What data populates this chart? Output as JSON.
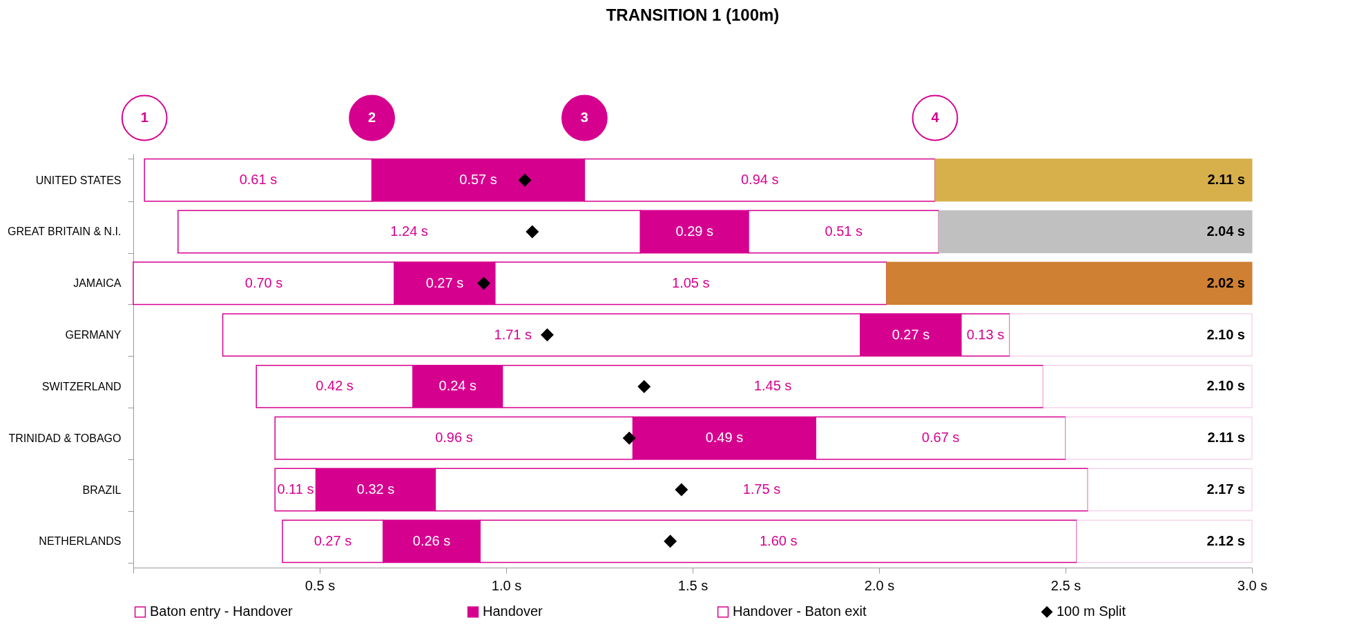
{
  "chart_data": {
    "type": "bar",
    "orientation": "horizontal",
    "title": "TRANSITION 1 (100m)",
    "categories": [
      "UNITED STATES",
      "GREAT BRITAIN & N.I.",
      "JAMAICA",
      "GERMANY",
      "SWITZERLAND",
      "TRINIDAD & TOBAGO",
      "BRAZIL",
      "NETHERLANDS"
    ],
    "series": [
      {
        "name": "Baton entry - Handover",
        "color": "#ffffff",
        "base": [
          0.03,
          0.12,
          0.0,
          0.24,
          0.33,
          0.38,
          0.38,
          0.4
        ],
        "values": [
          0.61,
          1.24,
          0.7,
          1.71,
          0.42,
          0.96,
          0.11,
          0.27
        ],
        "value_labels": [
          "0.61 s",
          "1.24 s",
          "0.70 s",
          "1.71 s",
          "0.42 s",
          "0.96 s",
          "0.11 s",
          "0.27 s"
        ]
      },
      {
        "name": "Handover",
        "color": "#d6008f",
        "base": [
          0.64,
          1.36,
          0.7,
          1.95,
          0.75,
          1.34,
          0.49,
          0.67
        ],
        "values": [
          0.57,
          0.29,
          0.27,
          0.27,
          0.24,
          0.49,
          0.32,
          0.26
        ],
        "value_labels": [
          "0.57 s",
          "0.29 s",
          "0.27 s",
          "0.27 s",
          "0.24 s",
          "0.49 s",
          "0.32 s",
          "0.26 s"
        ]
      },
      {
        "name": "Handover - Baton exit",
        "color": "#ffffff",
        "base": [
          1.21,
          1.65,
          0.97,
          2.22,
          0.99,
          1.83,
          0.81,
          0.93
        ],
        "values": [
          0.94,
          0.51,
          1.05,
          0.13,
          1.45,
          0.67,
          1.75,
          1.6
        ],
        "value_labels": [
          "0.94 s",
          "0.51 s",
          "1.05 s",
          "0.13 s",
          "1.45 s",
          "0.67 s",
          "1.75 s",
          "1.60 s"
        ]
      },
      {
        "colors": [
          "#d7b04c",
          "#c0c0c0",
          "#cf8033",
          "#ffffff",
          "#ffffff",
          "#ffffff",
          "#ffffff",
          "#ffffff"
        ],
        "base": [
          2.15,
          2.16,
          2.02,
          2.35,
          2.44,
          2.5,
          2.56,
          2.53
        ],
        "values": [
          0.85,
          0.84,
          0.98,
          0.65,
          0.56,
          0.5,
          0.44,
          0.47
        ]
      },
      {
        "name": "100 m Split",
        "type": "scatter",
        "color": "#000000",
        "values": [
          1.05,
          1.07,
          0.94,
          1.11,
          1.37,
          1.33,
          1.47,
          1.44
        ]
      }
    ],
    "marker": "diamond",
    "xlim": [
      0,
      3
    ],
    "xticks": [
      {
        "value": 0,
        "label": null
      },
      {
        "value": 0.5,
        "label": "0.5 s"
      },
      {
        "value": 1.0,
        "label": "1.0 s"
      },
      {
        "value": 1.5,
        "label": "1.5 s"
      },
      {
        "value": 2.0,
        "label": "2.0 s"
      },
      {
        "value": 2.5,
        "label": "2.5 s"
      },
      {
        "value": 3.0,
        "label": "3.0 s"
      }
    ],
    "annotations": [
      "1",
      "2",
      "3",
      "4",
      {
        "text": "2.11 s",
        "y": "UNITED STATES"
      },
      {
        "text": "2.04 s",
        "y": "GREAT BRITAIN & N.I."
      },
      {
        "text": "2.02 s",
        "y": "JAMAICA"
      },
      {
        "text": "2.10 s",
        "y": "GERMANY"
      },
      {
        "text": "2.10 s",
        "y": "SWITZERLAND"
      },
      {
        "text": "2.11 s",
        "y": "TRINIDAD & TOBAGO"
      },
      {
        "text": "2.17 s",
        "y": "BRAZIL"
      },
      {
        "text": "2.12 s",
        "y": "NETHERLANDS"
      }
    ],
    "legend": "bottom"
  }
}
